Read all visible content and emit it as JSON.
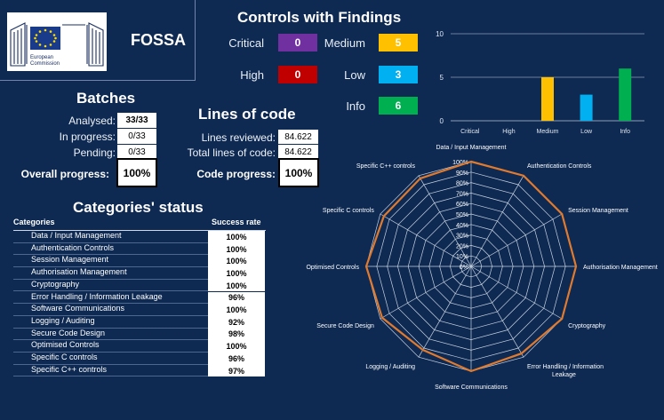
{
  "brand": {
    "title": "FOSSA",
    "logo_text_line1": "European",
    "logo_text_line2": "Commission"
  },
  "controls": {
    "title": "Controls with Findings",
    "items": [
      {
        "label": "Critical",
        "value": "0",
        "color": "#7030a0"
      },
      {
        "label": "Medium",
        "value": "5",
        "color": "#ffc000"
      },
      {
        "label": "High",
        "value": "0",
        "color": "#c00000"
      },
      {
        "label": "Low",
        "value": "3",
        "color": "#00b0f0"
      },
      {
        "label": "Info",
        "value": "6",
        "color": "#00b050"
      }
    ]
  },
  "batches": {
    "title": "Batches",
    "analysed_label": "Analysed:",
    "analysed_value": "33/33",
    "in_progress_label": "In progress:",
    "in_progress_value": "0/33",
    "pending_label": "Pending:",
    "pending_value": "0/33",
    "overall_label": "Overall progress:",
    "overall_value": "100%"
  },
  "loc": {
    "title": "Lines of code",
    "reviewed_label": "Lines reviewed:",
    "reviewed_value": "84.622",
    "total_label": "Total lines of code:",
    "total_value": "84.622",
    "progress_label": "Code progress:",
    "progress_value": "100%"
  },
  "categories": {
    "title": "Categories' status",
    "col_category": "Categories",
    "col_rate": "Success rate",
    "rows": [
      {
        "name": "Data / Input Management",
        "rate": "100%"
      },
      {
        "name": "Authentication Controls",
        "rate": "100%"
      },
      {
        "name": "Session Management",
        "rate": "100%"
      },
      {
        "name": "Authorisation Management",
        "rate": "100%"
      },
      {
        "name": "Cryptography",
        "rate": "100%"
      },
      {
        "name": "Error Handling / Information Leakage",
        "rate": "96%"
      },
      {
        "name": "Software Communications",
        "rate": "100%"
      },
      {
        "name": "Logging / Auditing",
        "rate": "92%"
      },
      {
        "name": "Secure Code Design",
        "rate": "98%"
      },
      {
        "name": "Optimised Controls",
        "rate": "100%"
      },
      {
        "name": "Specific C controls",
        "rate": "96%"
      },
      {
        "name": "Specific C++ controls",
        "rate": "97%"
      }
    ]
  },
  "chart_data": [
    {
      "type": "bar",
      "categories": [
        "Critical",
        "High",
        "Medium",
        "Low",
        "Info"
      ],
      "values": [
        0,
        0,
        5,
        3,
        6
      ],
      "colors": [
        "#7030a0",
        "#c00000",
        "#ffc000",
        "#00b0f0",
        "#00b050"
      ],
      "ylim": [
        0,
        10
      ],
      "yticks": [
        0,
        5,
        10
      ],
      "grid": true
    },
    {
      "type": "radar",
      "axes": [
        "Data / Input Management",
        "Authentication Controls",
        "Session Management",
        "Authorisation Management",
        "Cryptography",
        "Error Handling / Information Leakage",
        "Software Communications",
        "Logging / Auditing",
        "Secure Code Design",
        "Optimised Controls",
        "Specific C controls",
        "Specific C++ controls"
      ],
      "values": [
        100,
        100,
        100,
        100,
        100,
        96,
        100,
        92,
        98,
        100,
        96,
        97
      ],
      "range": [
        0,
        100
      ],
      "tick_labels": [
        "0%",
        "10%",
        "20%",
        "30%",
        "40%",
        "50%",
        "60%",
        "70%",
        "80%",
        "90%",
        "100%"
      ],
      "series_color": "#e07a2e"
    }
  ]
}
